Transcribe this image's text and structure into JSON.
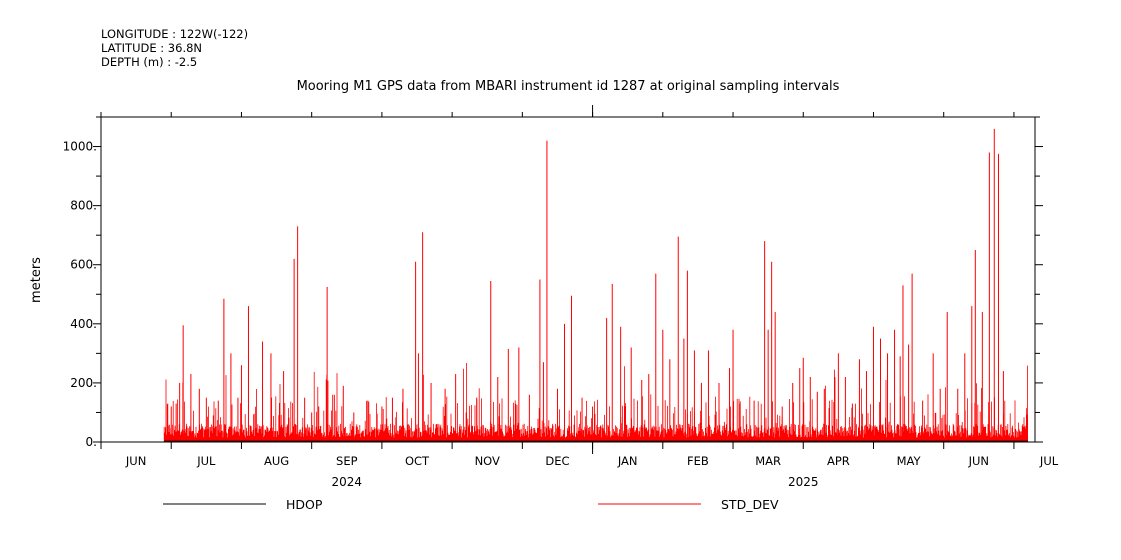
{
  "header": {
    "longitude": "LONGITUDE : 122W(-122)",
    "latitude": "LATITUDE : 36.8N",
    "depth": "DEPTH (m) : -2.5"
  },
  "chart_data": {
    "type": "line",
    "title": "Mooring M1 GPS data from MBARI instrument id 1287 at original sampling intervals",
    "xlabel": "",
    "ylabel": "meters",
    "ylim": [
      0,
      1100
    ],
    "xlim": [
      0,
      13.3
    ],
    "y_ticks": [
      0,
      200,
      400,
      600,
      800,
      1000
    ],
    "y_tick_labels": [
      "0.",
      "200.",
      "400.",
      "600.",
      "800.",
      "1000."
    ],
    "month_labels": [
      "JUN",
      "JUL",
      "AUG",
      "SEP",
      "OCT",
      "NOV",
      "DEC",
      "JAN",
      "FEB",
      "MAR",
      "APR",
      "MAY",
      "JUN",
      "JUL"
    ],
    "year_labels": [
      {
        "label": "2024",
        "at": 3.5
      },
      {
        "label": "2025",
        "at": 10.0
      }
    ],
    "year_boundary": 7.0,
    "data_start": 0.9,
    "data_end": 13.2,
    "series": [
      {
        "name": "STD_DEV",
        "color": "#ff0000",
        "peaks": [
          [
            0.95,
            130
          ],
          [
            1.0,
            120
          ],
          [
            1.07,
            130
          ],
          [
            1.12,
            200
          ],
          [
            1.17,
            395
          ],
          [
            1.28,
            230
          ],
          [
            1.4,
            180
          ],
          [
            1.5,
            150
          ],
          [
            1.6,
            90
          ],
          [
            1.67,
            140
          ],
          [
            1.75,
            485
          ],
          [
            1.85,
            300
          ],
          [
            1.95,
            150
          ],
          [
            2.0,
            260
          ],
          [
            2.1,
            460
          ],
          [
            2.3,
            340
          ],
          [
            2.42,
            300
          ],
          [
            2.6,
            240
          ],
          [
            2.75,
            620
          ],
          [
            2.8,
            730
          ],
          [
            2.9,
            150
          ],
          [
            3.0,
            100
          ],
          [
            3.1,
            120
          ],
          [
            3.22,
            525
          ],
          [
            3.3,
            160
          ],
          [
            3.45,
            190
          ],
          [
            3.6,
            100
          ],
          [
            3.8,
            140
          ],
          [
            4.0,
            120
          ],
          [
            4.15,
            150
          ],
          [
            4.3,
            180
          ],
          [
            4.48,
            610
          ],
          [
            4.52,
            300
          ],
          [
            4.58,
            710
          ],
          [
            4.7,
            200
          ],
          [
            4.9,
            180
          ],
          [
            5.05,
            230
          ],
          [
            5.2,
            100
          ],
          [
            5.35,
            150
          ],
          [
            5.55,
            545
          ],
          [
            5.65,
            220
          ],
          [
            5.8,
            315
          ],
          [
            5.95,
            320
          ],
          [
            6.1,
            160
          ],
          [
            6.25,
            550
          ],
          [
            6.3,
            270
          ],
          [
            6.35,
            1020
          ],
          [
            6.5,
            180
          ],
          [
            6.6,
            400
          ],
          [
            6.7,
            495
          ],
          [
            6.85,
            150
          ],
          [
            7.0,
            120
          ],
          [
            7.2,
            420
          ],
          [
            7.28,
            535
          ],
          [
            7.4,
            390
          ],
          [
            7.55,
            320
          ],
          [
            7.7,
            210
          ],
          [
            7.8,
            230
          ],
          [
            7.9,
            570
          ],
          [
            8.0,
            380
          ],
          [
            8.1,
            280
          ],
          [
            8.22,
            695
          ],
          [
            8.3,
            350
          ],
          [
            8.35,
            580
          ],
          [
            8.45,
            310
          ],
          [
            8.55,
            200
          ],
          [
            8.65,
            310
          ],
          [
            8.8,
            200
          ],
          [
            8.95,
            250
          ],
          [
            9.0,
            380
          ],
          [
            9.1,
            130
          ],
          [
            9.3,
            140
          ],
          [
            9.45,
            680
          ],
          [
            9.5,
            380
          ],
          [
            9.55,
            610
          ],
          [
            9.6,
            440
          ],
          [
            9.7,
            120
          ],
          [
            9.85,
            200
          ],
          [
            9.95,
            250
          ],
          [
            10.0,
            285
          ],
          [
            10.1,
            220
          ],
          [
            10.2,
            170
          ],
          [
            10.3,
            180
          ],
          [
            10.5,
            300
          ],
          [
            10.6,
            220
          ],
          [
            10.7,
            130
          ],
          [
            10.8,
            280
          ],
          [
            10.9,
            240
          ],
          [
            11.0,
            390
          ],
          [
            11.1,
            350
          ],
          [
            11.2,
            300
          ],
          [
            11.3,
            380
          ],
          [
            11.38,
            290
          ],
          [
            11.42,
            530
          ],
          [
            11.5,
            330
          ],
          [
            11.55,
            570
          ],
          [
            11.7,
            140
          ],
          [
            11.85,
            300
          ],
          [
            11.95,
            180
          ],
          [
            12.05,
            440
          ],
          [
            12.2,
            180
          ],
          [
            12.3,
            300
          ],
          [
            12.4,
            460
          ],
          [
            12.45,
            650
          ],
          [
            12.55,
            440
          ],
          [
            12.65,
            980
          ],
          [
            12.72,
            1060
          ],
          [
            12.78,
            975
          ],
          [
            12.85,
            240
          ]
        ]
      },
      {
        "name": "HDOP",
        "color": "#000000",
        "peaks": []
      }
    ],
    "legend": [
      {
        "name": "HDOP",
        "color": "#000000"
      },
      {
        "name": "STD_DEV",
        "color": "#ff0000"
      }
    ]
  }
}
